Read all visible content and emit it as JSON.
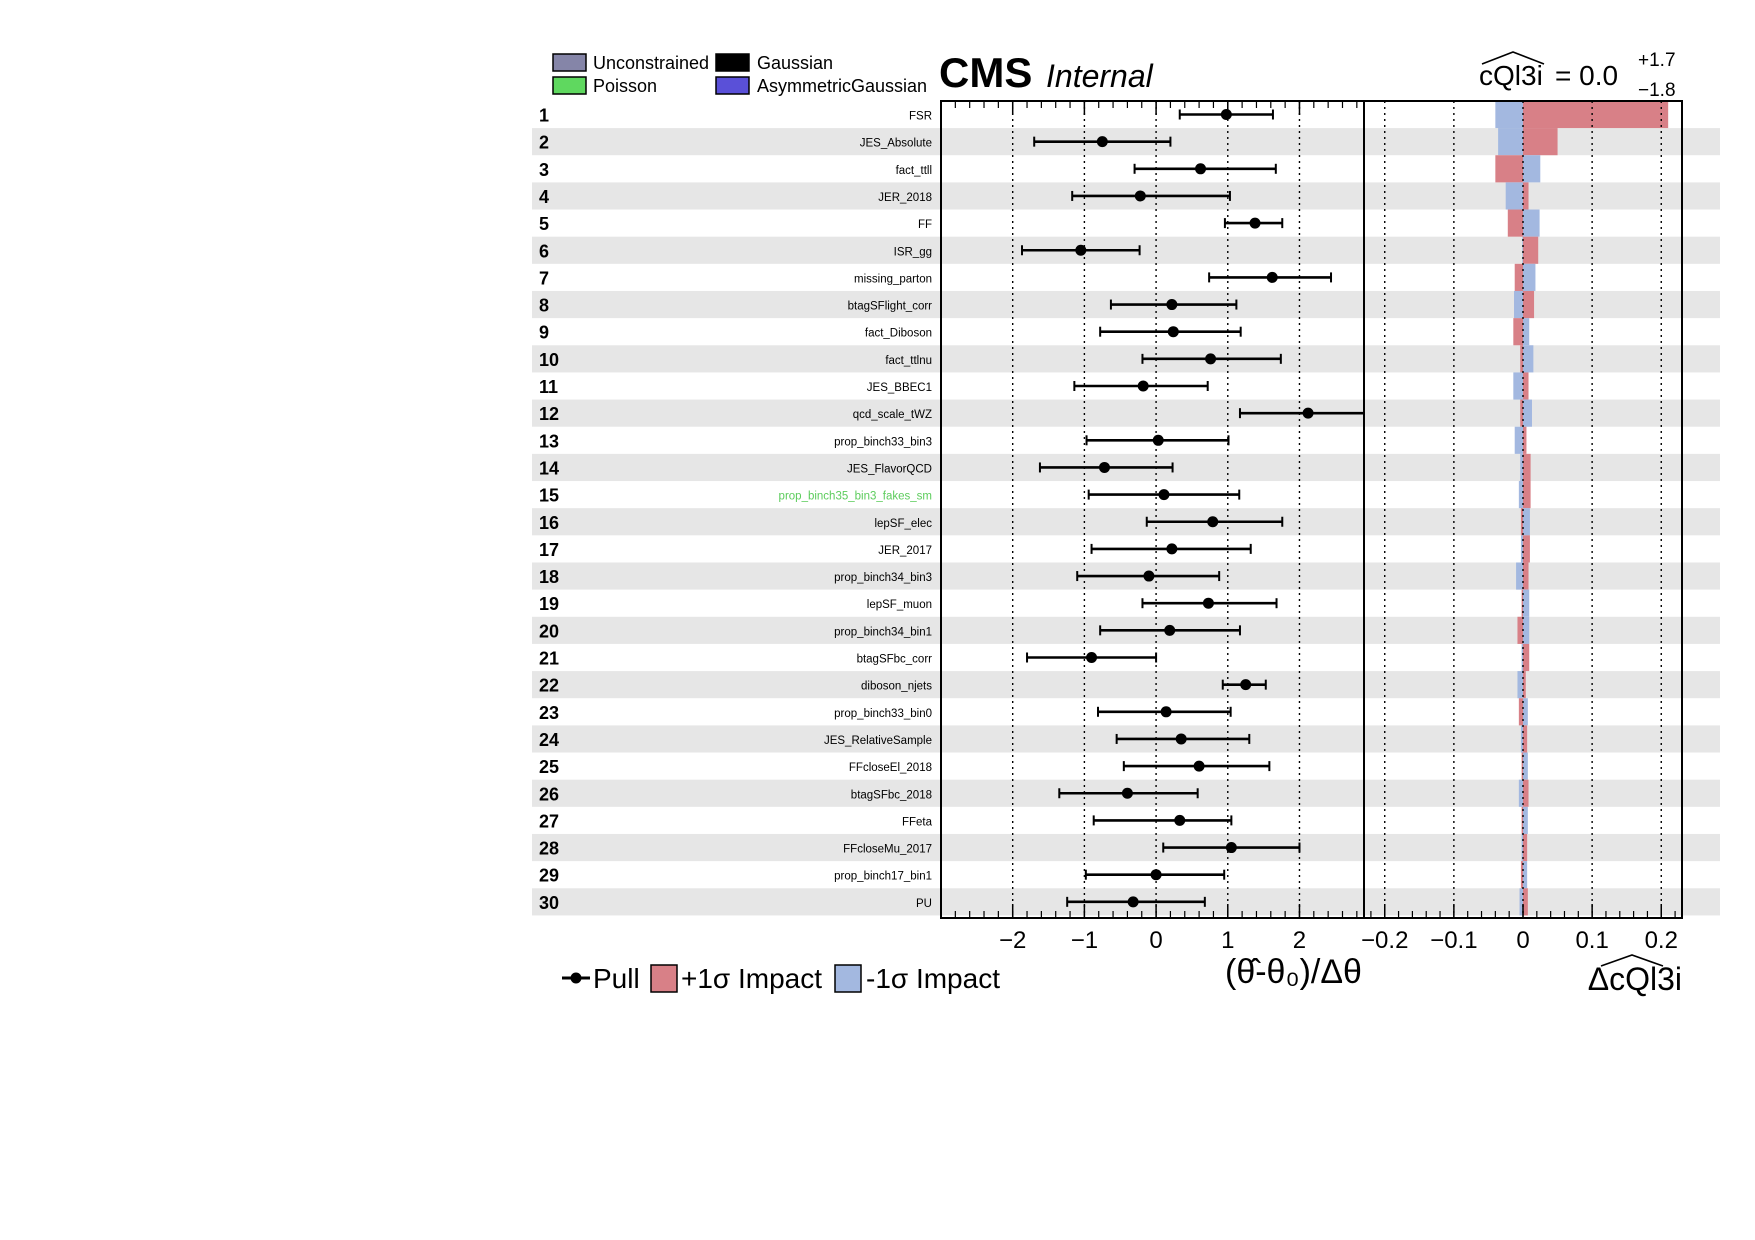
{
  "colors": {
    "stripe": "#e6e6e6",
    "impact_plus": "#d88087",
    "impact_minus": "#a3b8e0",
    "pull": "#000000",
    "label_default": "#000000",
    "label_highlight": "#5ccc5c",
    "unconstrained": "#8585a8",
    "gaussian": "#000000",
    "poisson": "#5fd85f",
    "asymmetric_gaussian": "#5a50d8"
  },
  "header": {
    "experiment": "CMS",
    "status": "Internal",
    "poi_label": "cQl3i",
    "poi_value": "= 0.0",
    "poi_err_up": "+1.7",
    "poi_err_down": "−1.8"
  },
  "constraint_legend": [
    {
      "name": "Unconstrained",
      "color_key": "unconstrained"
    },
    {
      "name": "Gaussian",
      "color_key": "gaussian"
    },
    {
      "name": "Poisson",
      "color_key": "poisson"
    },
    {
      "name": "AsymmetricGaussian",
      "color_key": "asymmetric_gaussian"
    }
  ],
  "bottom_legend": {
    "pull": "Pull",
    "plus": "+1σ Impact",
    "minus": "-1σ Impact"
  },
  "chart_data": {
    "type": "impact",
    "pull_axis": {
      "label": "(θ̂-θ₀)/Δθ",
      "range": [
        -3.0,
        2.9
      ],
      "ticks": [
        -2,
        -1,
        0,
        1,
        2
      ],
      "tick_labels": [
        "−2",
        "−1",
        "0",
        "1",
        "2"
      ],
      "dotted_gridlines": [
        -2,
        -1,
        0,
        1,
        2
      ]
    },
    "impact_axis": {
      "label": "ΔcQl3i",
      "range": [
        -0.23,
        0.23
      ],
      "ticks": [
        -0.2,
        -0.1,
        0,
        0.1,
        0.2
      ],
      "tick_labels": [
        "−0.2",
        "−0.1",
        "0",
        "0.1",
        "0.2"
      ],
      "dotted_gridlines": [
        -0.2,
        -0.1,
        0,
        0.1,
        0.2
      ]
    },
    "nuisances": [
      {
        "rank": "1",
        "name": "FSR",
        "pull": 0.98,
        "err_lo": 0.65,
        "err_hi": 0.65,
        "impact_plus": 0.21,
        "impact_minus": -0.04,
        "highlight": false
      },
      {
        "rank": "2",
        "name": "JES_Absolute",
        "pull": -0.75,
        "err_lo": 0.95,
        "err_hi": 0.95,
        "impact_plus": 0.05,
        "impact_minus": -0.036,
        "highlight": false
      },
      {
        "rank": "3",
        "name": "fact_ttll",
        "pull": 0.62,
        "err_lo": 0.92,
        "err_hi": 1.05,
        "impact_plus": -0.04,
        "impact_minus": 0.025,
        "highlight": false
      },
      {
        "rank": "4",
        "name": "JER_2018",
        "pull": -0.22,
        "err_lo": 0.95,
        "err_hi": 1.25,
        "impact_plus": 0.008,
        "impact_minus": -0.025,
        "highlight": false
      },
      {
        "rank": "5",
        "name": "FF",
        "pull": 1.38,
        "err_lo": 0.42,
        "err_hi": 0.38,
        "impact_plus": -0.022,
        "impact_minus": 0.024,
        "highlight": false
      },
      {
        "rank": "6",
        "name": "ISR_gg",
        "pull": -1.05,
        "err_lo": 0.82,
        "err_hi": 0.82,
        "impact_plus": 0.022,
        "impact_minus": -0.001,
        "highlight": false
      },
      {
        "rank": "7",
        "name": "missing_parton",
        "pull": 1.62,
        "err_lo": 0.88,
        "err_hi": 0.82,
        "impact_plus": -0.012,
        "impact_minus": 0.018,
        "highlight": false
      },
      {
        "rank": "8",
        "name": "btagSFlight_corr",
        "pull": 0.22,
        "err_lo": 0.85,
        "err_hi": 0.9,
        "impact_plus": 0.016,
        "impact_minus": -0.013,
        "highlight": false
      },
      {
        "rank": "9",
        "name": "fact_Diboson",
        "pull": 0.24,
        "err_lo": 1.02,
        "err_hi": 0.94,
        "impact_plus": -0.014,
        "impact_minus": 0.009,
        "highlight": false
      },
      {
        "rank": "10",
        "name": "fact_ttlnu",
        "pull": 0.76,
        "err_lo": 0.95,
        "err_hi": 0.98,
        "impact_plus": -0.004,
        "impact_minus": 0.015,
        "highlight": false
      },
      {
        "rank": "11",
        "name": "JES_BBEC1",
        "pull": -0.18,
        "err_lo": 0.96,
        "err_hi": 0.9,
        "impact_plus": 0.008,
        "impact_minus": -0.014,
        "highlight": false
      },
      {
        "rank": "12",
        "name": "qcd_scale_tWZ",
        "pull": 2.12,
        "err_lo": 0.95,
        "err_hi": 0.78,
        "impact_plus": -0.004,
        "impact_minus": 0.013,
        "highlight": false
      },
      {
        "rank": "13",
        "name": "prop_binch33_bin3",
        "pull": 0.03,
        "err_lo": 1.0,
        "err_hi": 0.98,
        "impact_plus": 0.005,
        "impact_minus": -0.012,
        "highlight": false
      },
      {
        "rank": "14",
        "name": "JES_FlavorQCD",
        "pull": -0.72,
        "err_lo": 0.9,
        "err_hi": 0.95,
        "impact_plus": 0.011,
        "impact_minus": -0.004,
        "highlight": false
      },
      {
        "rank": "15",
        "name": "prop_binch35_bin3_fakes_sm",
        "pull": 0.11,
        "err_lo": 1.05,
        "err_hi": 1.05,
        "impact_plus": 0.011,
        "impact_minus": -0.006,
        "highlight": true
      },
      {
        "rank": "16",
        "name": "lepSF_elec",
        "pull": 0.79,
        "err_lo": 0.92,
        "err_hi": 0.97,
        "impact_plus": -0.003,
        "impact_minus": 0.01,
        "highlight": false
      },
      {
        "rank": "17",
        "name": "JER_2017",
        "pull": 0.22,
        "err_lo": 1.12,
        "err_hi": 1.1,
        "impact_plus": 0.01,
        "impact_minus": -0.003,
        "highlight": false
      },
      {
        "rank": "18",
        "name": "prop_binch34_bin3",
        "pull": -0.1,
        "err_lo": 1.0,
        "err_hi": 0.98,
        "impact_plus": 0.008,
        "impact_minus": -0.01,
        "highlight": false
      },
      {
        "rank": "19",
        "name": "lepSF_muon",
        "pull": 0.73,
        "err_lo": 0.92,
        "err_hi": 0.95,
        "impact_plus": -0.002,
        "impact_minus": 0.009,
        "highlight": false
      },
      {
        "rank": "20",
        "name": "prop_binch34_bin1",
        "pull": 0.19,
        "err_lo": 0.97,
        "err_hi": 0.98,
        "impact_plus": -0.008,
        "impact_minus": 0.009,
        "highlight": false
      },
      {
        "rank": "21",
        "name": "btagSFbc_corr",
        "pull": -0.9,
        "err_lo": 0.9,
        "err_hi": 0.9,
        "impact_plus": 0.009,
        "impact_minus": -0.002,
        "highlight": false
      },
      {
        "rank": "22",
        "name": "diboson_njets",
        "pull": 1.25,
        "err_lo": 0.32,
        "err_hi": 0.28,
        "impact_plus": 0.004,
        "impact_minus": -0.008,
        "highlight": false
      },
      {
        "rank": "23",
        "name": "prop_binch33_bin0",
        "pull": 0.14,
        "err_lo": 0.95,
        "err_hi": 0.9,
        "impact_plus": -0.006,
        "impact_minus": 0.007,
        "highlight": false
      },
      {
        "rank": "24",
        "name": "JES_RelativeSample",
        "pull": 0.35,
        "err_lo": 0.9,
        "err_hi": 0.95,
        "impact_plus": 0.006,
        "impact_minus": -0.003,
        "highlight": false
      },
      {
        "rank": "25",
        "name": "FFcloseEl_2018",
        "pull": 0.6,
        "err_lo": 1.05,
        "err_hi": 0.98,
        "impact_plus": -0.002,
        "impact_minus": 0.007,
        "highlight": false
      },
      {
        "rank": "26",
        "name": "btagSFbc_2018",
        "pull": -0.4,
        "err_lo": 0.95,
        "err_hi": 0.98,
        "impact_plus": 0.008,
        "impact_minus": -0.006,
        "highlight": false
      },
      {
        "rank": "27",
        "name": "FFeta",
        "pull": 0.33,
        "err_lo": 1.2,
        "err_hi": 0.72,
        "impact_plus": -0.002,
        "impact_minus": 0.007,
        "highlight": false
      },
      {
        "rank": "28",
        "name": "FFcloseMu_2017",
        "pull": 1.05,
        "err_lo": 0.95,
        "err_hi": 0.95,
        "impact_plus": 0.006,
        "impact_minus": -0.002,
        "highlight": false
      },
      {
        "rank": "29",
        "name": "prop_binch17_bin1",
        "pull": 0.0,
        "err_lo": 0.98,
        "err_hi": 0.95,
        "impact_plus": -0.003,
        "impact_minus": 0.006,
        "highlight": false
      },
      {
        "rank": "30",
        "name": "PU",
        "pull": -0.32,
        "err_lo": 0.92,
        "err_hi": 1.0,
        "impact_plus": 0.007,
        "impact_minus": -0.005,
        "highlight": false
      }
    ]
  }
}
